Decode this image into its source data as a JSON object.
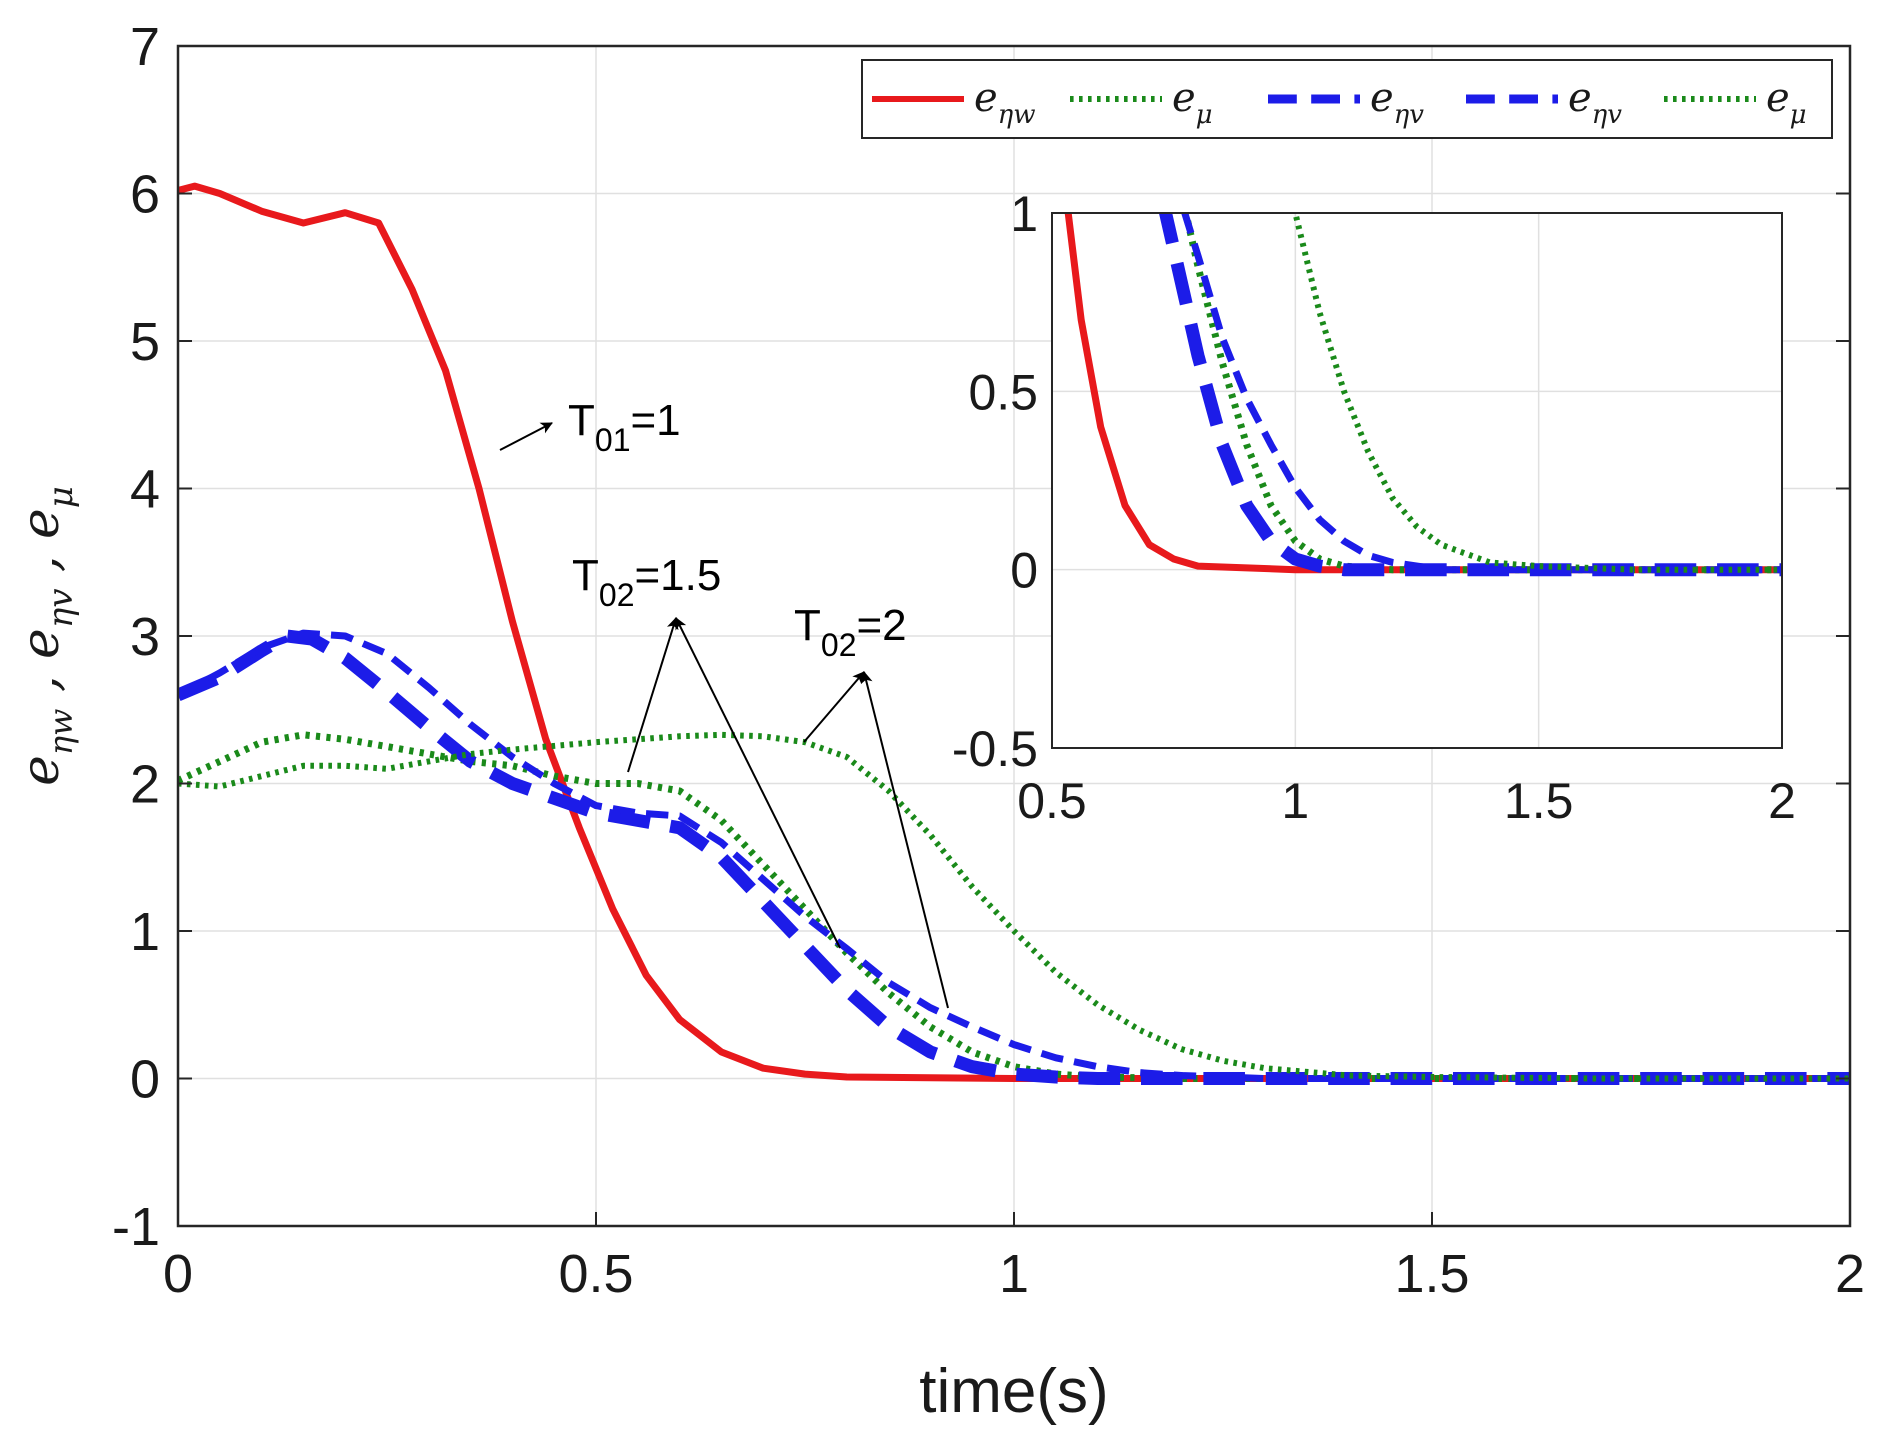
{
  "chart_data": {
    "type": "line",
    "xlabel": "time(s)",
    "ylabel": "e_ηw , e_ηv , e_μ",
    "xlim": [
      0,
      2
    ],
    "ylim": [
      -1,
      7
    ],
    "grid": true,
    "x_ticks": [
      "0",
      "0.5",
      "1",
      "1.5",
      "2"
    ],
    "y_ticks": [
      "-1",
      "0",
      "1",
      "2",
      "3",
      "4",
      "5",
      "6",
      "7"
    ],
    "legend_position": "top",
    "legend": [
      {
        "main": "e",
        "sub": "ηw",
        "color": "#e8191c",
        "style": "solid"
      },
      {
        "main": "e",
        "sub": "μ",
        "color": "#1a8a1a",
        "style": "dotted"
      },
      {
        "main": "e",
        "sub": "ηv",
        "color": "#1c1ce8",
        "style": "dashed"
      },
      {
        "main": "e",
        "sub": "ηv",
        "color": "#1c1ce8",
        "style": "dashed"
      },
      {
        "main": "e",
        "sub": "μ",
        "color": "#1a8a1a",
        "style": "dotted"
      }
    ],
    "series": [
      {
        "name": "e_ηw",
        "color": "#e8191c",
        "style": "solid",
        "width": 7,
        "x": [
          0,
          0.02,
          0.05,
          0.1,
          0.15,
          0.2,
          0.24,
          0.28,
          0.32,
          0.36,
          0.4,
          0.44,
          0.48,
          0.52,
          0.56,
          0.6,
          0.65,
          0.7,
          0.75,
          0.8,
          0.9,
          1.0,
          1.2,
          1.5,
          2.0
        ],
        "y": [
          6.02,
          6.05,
          6.0,
          5.88,
          5.8,
          5.87,
          5.8,
          5.35,
          4.8,
          4.0,
          3.1,
          2.3,
          1.7,
          1.15,
          0.7,
          0.4,
          0.18,
          0.07,
          0.03,
          0.01,
          0.005,
          0.0,
          0.0,
          0.0,
          0.0
        ]
      },
      {
        "name": "e_μ",
        "color": "#1a8a1a",
        "style": "dotted",
        "width": 7,
        "x": [
          0,
          0.05,
          0.1,
          0.15,
          0.2,
          0.25,
          0.3,
          0.35,
          0.4,
          0.45,
          0.5,
          0.55,
          0.6,
          0.65,
          0.7,
          0.75,
          0.8,
          0.85,
          0.9,
          0.95,
          1.0,
          1.05,
          1.1,
          1.2,
          1.5,
          2.0
        ],
        "y": [
          2.02,
          2.15,
          2.28,
          2.33,
          2.3,
          2.25,
          2.2,
          2.15,
          2.12,
          2.05,
          2.0,
          2.0,
          1.95,
          1.75,
          1.45,
          1.15,
          0.85,
          0.58,
          0.35,
          0.18,
          0.08,
          0.03,
          0.01,
          0.0,
          0.0,
          0.0
        ]
      },
      {
        "name": "e_ηv",
        "color": "#1c1ce8",
        "style": "dashed",
        "width": 13,
        "x": [
          0,
          0.05,
          0.1,
          0.13,
          0.16,
          0.2,
          0.25,
          0.3,
          0.35,
          0.4,
          0.45,
          0.5,
          0.55,
          0.6,
          0.65,
          0.7,
          0.75,
          0.8,
          0.85,
          0.9,
          0.95,
          1.0,
          1.05,
          1.1,
          1.2,
          1.5,
          2.0
        ],
        "y": [
          2.6,
          2.72,
          2.9,
          3.0,
          2.98,
          2.85,
          2.62,
          2.38,
          2.15,
          2.0,
          1.9,
          1.8,
          1.75,
          1.7,
          1.5,
          1.2,
          0.9,
          0.6,
          0.35,
          0.18,
          0.08,
          0.03,
          0.01,
          0.0,
          0.0,
          0.0,
          0.0
        ]
      },
      {
        "name": "e_ηv",
        "color": "#1c1ce8",
        "style": "dashed",
        "width": 7,
        "x": [
          0,
          0.05,
          0.1,
          0.15,
          0.2,
          0.25,
          0.3,
          0.35,
          0.4,
          0.45,
          0.5,
          0.55,
          0.6,
          0.65,
          0.7,
          0.75,
          0.8,
          0.85,
          0.9,
          0.95,
          1.0,
          1.05,
          1.1,
          1.15,
          1.2,
          1.3,
          1.5,
          2.0
        ],
        "y": [
          2.6,
          2.75,
          2.92,
          3.02,
          3.0,
          2.88,
          2.65,
          2.4,
          2.18,
          2.0,
          1.85,
          1.8,
          1.78,
          1.6,
          1.35,
          1.1,
          0.88,
          0.65,
          0.48,
          0.35,
          0.23,
          0.14,
          0.08,
          0.04,
          0.02,
          0.0,
          0.0,
          0.0
        ]
      },
      {
        "name": "e_μ",
        "color": "#1a8a1a",
        "style": "dotted",
        "width": 6,
        "x": [
          0,
          0.05,
          0.1,
          0.15,
          0.2,
          0.25,
          0.3,
          0.35,
          0.4,
          0.5,
          0.6,
          0.65,
          0.7,
          0.75,
          0.8,
          0.85,
          0.9,
          0.95,
          1.0,
          1.05,
          1.1,
          1.15,
          1.2,
          1.25,
          1.3,
          1.4,
          1.5,
          1.7,
          2.0
        ],
        "y": [
          2.0,
          1.98,
          2.05,
          2.12,
          2.12,
          2.1,
          2.15,
          2.2,
          2.23,
          2.28,
          2.32,
          2.33,
          2.32,
          2.28,
          2.18,
          1.95,
          1.65,
          1.3,
          1.0,
          0.72,
          0.5,
          0.33,
          0.2,
          0.12,
          0.07,
          0.02,
          0.01,
          0.0,
          0.0
        ]
      }
    ],
    "annotations": [
      {
        "label": "T",
        "sub": "01",
        "value": "=1"
      },
      {
        "label": "T",
        "sub": "02",
        "value": "=1.5"
      },
      {
        "label": "T",
        "sub": "02",
        "value": "=2"
      }
    ],
    "inset": {
      "xlim": [
        0.5,
        2
      ],
      "ylim": [
        -0.5,
        1
      ],
      "x_ticks": [
        "0.5",
        "1",
        "1.5",
        "2"
      ],
      "y_ticks": [
        "-0.5",
        "0",
        "0.5",
        "1"
      ],
      "grid": true
    }
  }
}
